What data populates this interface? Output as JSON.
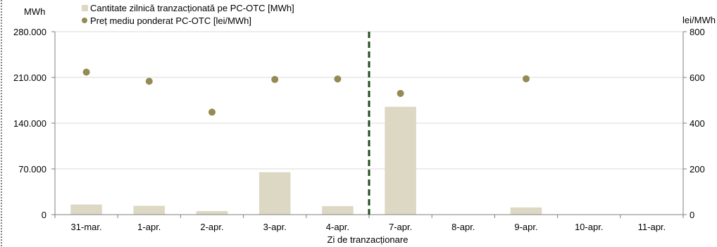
{
  "chart_data": {
    "type": "bar",
    "categories": [
      "31-mar.",
      "1-apr.",
      "2-apr.",
      "3-apr.",
      "4-apr.",
      "7-apr.",
      "8-apr.",
      "9-apr.",
      "10-apr.",
      "11-apr."
    ],
    "series": [
      {
        "name": "Cantitate zilnică tranzacționată pe PC-OTC [MWh]",
        "type": "bar",
        "axis": "left",
        "color": "#ddd8c4",
        "values": [
          15500,
          13500,
          5500,
          65000,
          13000,
          165000,
          0,
          11000,
          0,
          0
        ]
      },
      {
        "name": "Preț mediu ponderat PC-OTC [lei/MWh]",
        "type": "scatter",
        "axis": "right",
        "color": "#948a54",
        "values": [
          623,
          583,
          448,
          591,
          593,
          530,
          null,
          594,
          null,
          null
        ]
      }
    ],
    "xlabel": "Zi de tranzacționare",
    "ylabel_left": "MWh",
    "ylabel_right": "lei/MWh",
    "ylim_left": [
      0,
      280000
    ],
    "ylim_right": [
      0,
      800
    ],
    "yticks_left": [
      "0",
      "70.000",
      "140.000",
      "210.000",
      "280.000"
    ],
    "yticks_left_values": [
      0,
      70000,
      140000,
      210000,
      280000
    ],
    "yticks_right": [
      "0",
      "200",
      "400",
      "600",
      "800"
    ],
    "yticks_right_values": [
      0,
      200,
      400,
      600,
      800
    ],
    "divider_after_category": "4-apr.",
    "divider_color": "#1e4d1e",
    "grid_color": "#d9d9d9",
    "grid": false,
    "legend_position": "top-left"
  }
}
